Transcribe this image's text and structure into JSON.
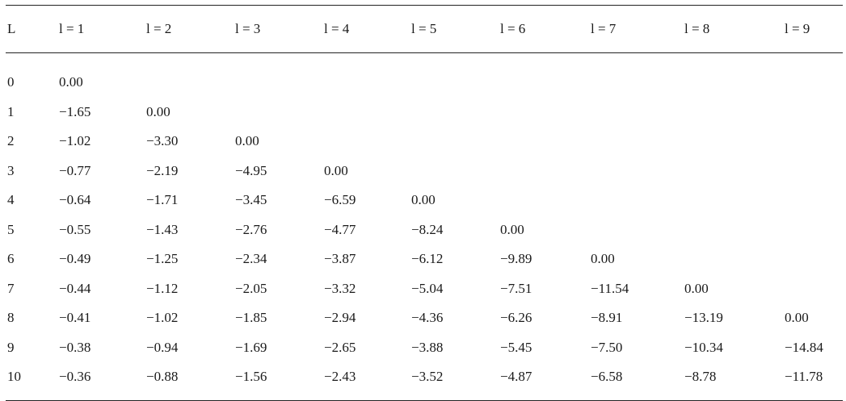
{
  "table": {
    "header": [
      "L",
      "l = 1",
      "l = 2",
      "l = 3",
      "l = 4",
      "l = 5",
      "l = 6",
      "l = 7",
      "l = 8",
      "l = 9"
    ],
    "rows": [
      [
        "0",
        "0.00",
        "",
        "",
        "",
        "",
        "",
        "",
        "",
        ""
      ],
      [
        "1",
        "−1.65",
        "0.00",
        "",
        "",
        "",
        "",
        "",
        "",
        ""
      ],
      [
        "2",
        "−1.02",
        "−3.30",
        "0.00",
        "",
        "",
        "",
        "",
        "",
        ""
      ],
      [
        "3",
        "−0.77",
        "−2.19",
        "−4.95",
        "0.00",
        "",
        "",
        "",
        "",
        ""
      ],
      [
        "4",
        "−0.64",
        "−1.71",
        "−3.45",
        "−6.59",
        "0.00",
        "",
        "",
        "",
        ""
      ],
      [
        "5",
        "−0.55",
        "−1.43",
        "−2.76",
        "−4.77",
        "−8.24",
        "0.00",
        "",
        "",
        ""
      ],
      [
        "6",
        "−0.49",
        "−1.25",
        "−2.34",
        "−3.87",
        "−6.12",
        "−9.89",
        "0.00",
        "",
        ""
      ],
      [
        "7",
        "−0.44",
        "−1.12",
        "−2.05",
        "−3.32",
        "−5.04",
        "−7.51",
        "−11.54",
        "0.00",
        ""
      ],
      [
        "8",
        "−0.41",
        "−1.02",
        "−1.85",
        "−2.94",
        "−4.36",
        "−6.26",
        "−8.91",
        "−13.19",
        "0.00"
      ],
      [
        "9",
        "−0.38",
        "−0.94",
        "−1.69",
        "−2.65",
        "−3.88",
        "−5.45",
        "−7.50",
        "−10.34",
        "−14.84"
      ],
      [
        "10",
        "−0.36",
        "−0.88",
        "−1.56",
        "−2.43",
        "−3.52",
        "−4.87",
        "−6.58",
        "−8.78",
        "−11.78"
      ]
    ]
  }
}
